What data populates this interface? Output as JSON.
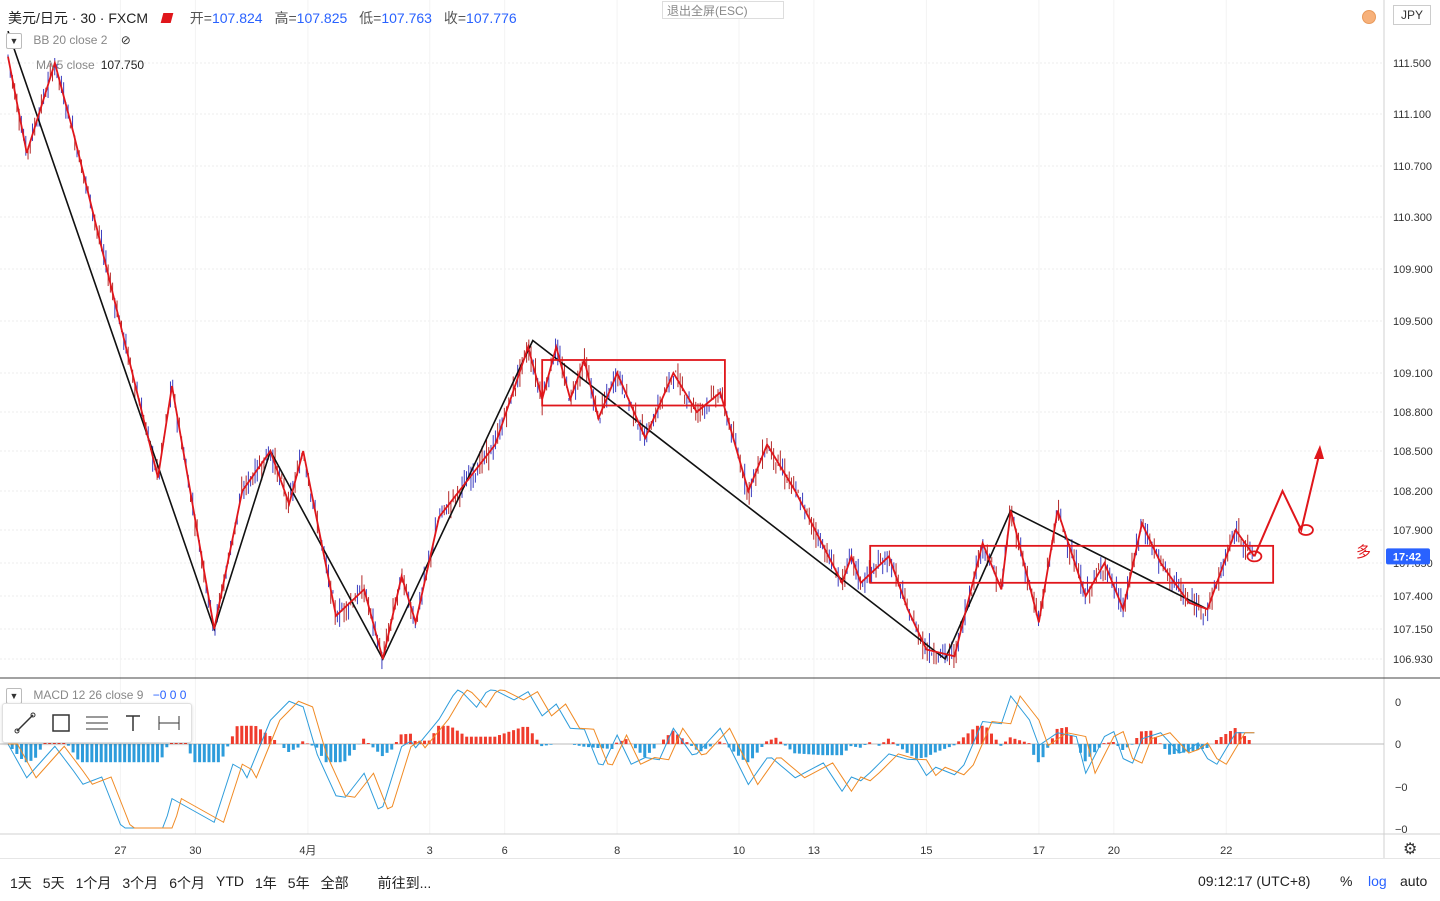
{
  "header": {
    "symbol": "美元/日元 · 30 · FXCM",
    "open_label": "开=",
    "open": "107.824",
    "high_label": "高=",
    "high": "107.825",
    "low_label": "低=",
    "low": "107.763",
    "close_label": "收=",
    "close": "107.776",
    "exit_fullscreen": "退出全屏(ESC)",
    "currency": "JPY"
  },
  "indicators": {
    "bb": "BB 20 close 2",
    "ma_label": "MA 5 close",
    "ma_value": "107.750",
    "macd_label": "MACD 12 26 close 9",
    "macd_values": "−0  0  0"
  },
  "annotation_text": "多",
  "bottom_bar": {
    "ranges": [
      "1天",
      "5天",
      "1个月",
      "3个月",
      "6个月",
      "YTD",
      "1年",
      "5年",
      "全部"
    ],
    "goto": "前往到...",
    "clock": "09:12:17 (UTC+8)",
    "percent": "%",
    "log": "log",
    "auto": "auto"
  },
  "colors": {
    "accent": "#2962ff",
    "red": "#e0161b",
    "black": "#111111",
    "candle_up": "#3b3dbf",
    "candle_down": "#b52a2a",
    "macd_pos": "#ef3b2c",
    "macd_neg": "#2d9cdb",
    "price_label_bg": "#2962ff"
  },
  "chart_data": {
    "type": "line",
    "title": "美元/日元 · 30 · FXCM",
    "y_axis_ticks": [
      "111.500",
      "111.100",
      "110.700",
      "110.300",
      "109.900",
      "109.500",
      "109.100",
      "108.800",
      "108.500",
      "108.200",
      "107.900",
      "107.650",
      "107.400",
      "107.150",
      "106.930"
    ],
    "y_axis_values": [
      111.5,
      111.1,
      110.7,
      110.3,
      109.9,
      109.5,
      109.1,
      108.8,
      108.5,
      108.2,
      107.9,
      107.65,
      107.4,
      107.15,
      106.93
    ],
    "current_price_label": "17:42",
    "current_price": 107.7,
    "x_axis_ticks": [
      "27",
      "30",
      "4月",
      "3",
      "6",
      "8",
      "10",
      "13",
      "15",
      "17",
      "20",
      "22"
    ],
    "x_tick_index": [
      12,
      20,
      32,
      45,
      53,
      65,
      78,
      86,
      98,
      110,
      118,
      130
    ],
    "x_range": [
      0,
      140
    ],
    "ylim": [
      106.88,
      111.82
    ],
    "macd_ticks": [
      "0",
      "0",
      "−0",
      "−0"
    ],
    "black_zigzag": [
      [
        0,
        111.75
      ],
      [
        22,
        107.15
      ],
      [
        28,
        108.5
      ],
      [
        40,
        106.93
      ],
      [
        56,
        109.35
      ],
      [
        100,
        106.93
      ],
      [
        107,
        108.05
      ],
      [
        128,
        107.3
      ]
    ],
    "red_zigzag": [
      [
        0,
        111.55
      ],
      [
        2,
        110.8
      ],
      [
        5,
        111.5
      ],
      [
        7,
        110.95
      ],
      [
        16,
        108.3
      ],
      [
        17.5,
        109.0
      ],
      [
        22,
        107.15
      ],
      [
        25,
        108.2
      ],
      [
        28,
        108.5
      ],
      [
        30,
        108.1
      ],
      [
        31.5,
        108.5
      ],
      [
        35,
        107.25
      ],
      [
        38,
        107.45
      ],
      [
        40,
        106.93
      ],
      [
        42,
        107.55
      ],
      [
        43.5,
        107.2
      ],
      [
        46,
        108.0
      ],
      [
        52,
        108.55
      ],
      [
        55.5,
        109.3
      ],
      [
        57,
        108.9
      ],
      [
        58.5,
        109.3
      ],
      [
        60,
        108.9
      ],
      [
        61.5,
        109.2
      ],
      [
        63,
        108.75
      ],
      [
        65,
        109.1
      ],
      [
        68,
        108.6
      ],
      [
        71,
        109.1
      ],
      [
        73.5,
        108.8
      ],
      [
        76,
        108.95
      ],
      [
        79,
        108.2
      ],
      [
        81,
        108.55
      ],
      [
        84,
        108.2
      ],
      [
        89,
        107.5
      ],
      [
        90,
        107.7
      ],
      [
        91,
        107.5
      ],
      [
        94,
        107.7
      ],
      [
        96,
        107.3
      ],
      [
        98,
        107.0
      ],
      [
        101,
        106.95
      ],
      [
        104,
        107.8
      ],
      [
        106,
        107.45
      ],
      [
        107,
        108.05
      ],
      [
        110,
        107.2
      ],
      [
        112,
        108.05
      ],
      [
        115,
        107.4
      ],
      [
        117,
        107.65
      ],
      [
        119,
        107.3
      ],
      [
        121,
        107.95
      ],
      [
        123,
        107.65
      ],
      [
        126,
        107.35
      ],
      [
        128,
        107.3
      ],
      [
        131,
        107.9
      ],
      [
        133,
        107.7
      ]
    ],
    "arrow_path": [
      [
        133,
        107.7
      ],
      [
        136,
        108.2
      ],
      [
        138,
        107.9
      ],
      [
        140,
        108.5
      ]
    ],
    "circle_marks": [
      [
        133,
        107.7
      ],
      [
        138.5,
        107.9
      ]
    ],
    "range_boxes": [
      {
        "x0": 57,
        "x1": 76.5,
        "y0": 108.85,
        "y1": 109.2
      },
      {
        "x0": 92,
        "x1": 135,
        "y0": 107.5,
        "y1": 107.78
      }
    ]
  }
}
